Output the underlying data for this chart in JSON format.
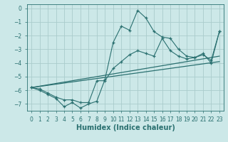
{
  "xlabel": "Humidex (Indice chaleur)",
  "bg_color": "#cce8e8",
  "grid_color": "#aacccc",
  "line_color": "#2a7070",
  "xlim": [
    -0.5,
    23.5
  ],
  "ylim": [
    -7.5,
    0.3
  ],
  "yticks": [
    0,
    -1,
    -2,
    -3,
    -4,
    -5,
    -6,
    -7
  ],
  "xticks": [
    0,
    1,
    2,
    3,
    4,
    5,
    6,
    7,
    8,
    9,
    10,
    11,
    12,
    13,
    14,
    15,
    16,
    17,
    18,
    19,
    20,
    21,
    22,
    23
  ],
  "line1_x": [
    0,
    1,
    2,
    3,
    4,
    5,
    6,
    7,
    8,
    9,
    10,
    11,
    12,
    13,
    14,
    15,
    16,
    17,
    18,
    19,
    20,
    21,
    22,
    23
  ],
  "line1_y": [
    -5.8,
    -6.0,
    -6.3,
    -6.6,
    -7.2,
    -6.9,
    -7.3,
    -7.0,
    -6.8,
    -5.2,
    -2.5,
    -1.3,
    -1.6,
    -0.15,
    -0.7,
    -1.7,
    -2.1,
    -2.2,
    -3.0,
    -3.5,
    -3.6,
    -3.3,
    -4.0,
    -1.7
  ],
  "line2_x": [
    0,
    1,
    2,
    3,
    4,
    5,
    6,
    7,
    8,
    9,
    10,
    11,
    12,
    13,
    14,
    15,
    16,
    17,
    18,
    19,
    20,
    21,
    22,
    23
  ],
  "line2_y": [
    -5.8,
    -5.9,
    -6.2,
    -6.5,
    -6.7,
    -6.7,
    -6.9,
    -6.9,
    -5.3,
    -5.3,
    -4.4,
    -3.9,
    -3.4,
    -3.1,
    -3.3,
    -3.5,
    -2.2,
    -3.1,
    -3.5,
    -3.7,
    -3.6,
    -3.4,
    -3.8,
    -1.7
  ],
  "line3_x": [
    0,
    23
  ],
  "line3_y": [
    -5.8,
    -3.5
  ],
  "line4_x": [
    0,
    23
  ],
  "line4_y": [
    -5.8,
    -3.9
  ],
  "tick_labelsize": 5.5,
  "xlabel_fontsize": 7
}
